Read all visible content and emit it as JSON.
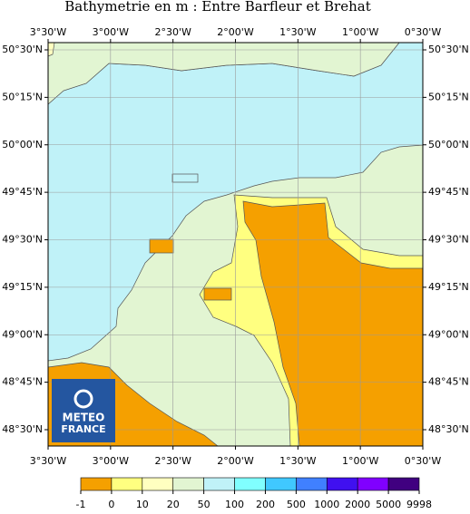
{
  "title": "Bathymetrie en m : Entre Barfleur et Brehat",
  "map": {
    "lon_labels": [
      "3°30'W",
      "3°00'W",
      "2°30'W",
      "2°00'W",
      "1°30'W",
      "1°00'W",
      "0°30'W"
    ],
    "lat_labels": [
      "50°30'N",
      "50°15'N",
      "50°00'N",
      "49°45'N",
      "49°30'N",
      "49°15'N",
      "49°00'N",
      "48°45'N",
      "48°30'N"
    ]
  },
  "logo": {
    "line1": "METEO",
    "line2": "FRANCE"
  },
  "colorbar": {
    "ticks": [
      -1,
      0,
      10,
      20,
      50,
      100,
      200,
      500,
      1000,
      2000,
      5000,
      9998
    ],
    "colors": [
      "#f5a000",
      "#ffff80",
      "#ffffc0",
      "#e2f5d2",
      "#c0f2f8",
      "#80ffff",
      "#40c8ff",
      "#4080ff",
      "#4010f0",
      "#8000ff",
      "#400080"
    ]
  }
}
